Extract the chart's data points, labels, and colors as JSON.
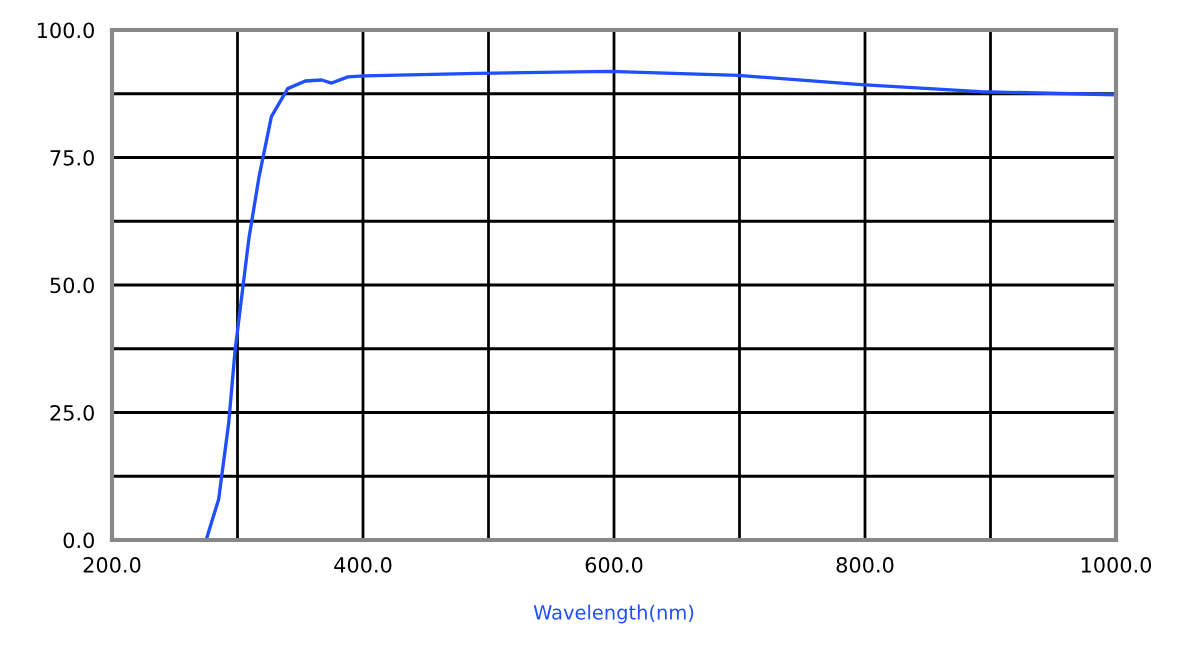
{
  "chart_data": {
    "type": "line",
    "xlabel": "Wavelength(nm)",
    "xlim": [
      200,
      1000
    ],
    "ylim": [
      0,
      100
    ],
    "xticks": [
      {
        "value": 200,
        "label": "200.0"
      },
      {
        "value": 300,
        "label": null
      },
      {
        "value": 400,
        "label": "400.0"
      },
      {
        "value": 500,
        "label": null
      },
      {
        "value": 600,
        "label": "600.0"
      },
      {
        "value": 700,
        "label": null
      },
      {
        "value": 800,
        "label": "800.0"
      },
      {
        "value": 900,
        "label": null
      },
      {
        "value": 1000,
        "label": "1000.0"
      }
    ],
    "yticks": [
      {
        "value": 0,
        "label": "0.0"
      },
      {
        "value": 12.5,
        "label": null
      },
      {
        "value": 25,
        "label": "25.0"
      },
      {
        "value": 37.5,
        "label": null
      },
      {
        "value": 50,
        "label": "50.0"
      },
      {
        "value": 62.5,
        "label": null
      },
      {
        "value": 75,
        "label": "75.0"
      },
      {
        "value": 87.5,
        "label": null
      },
      {
        "value": 100,
        "label": "100.0"
      }
    ],
    "grid": true,
    "series": [
      {
        "color": "#1f4fff",
        "x": [
          270,
          275,
          285,
          293,
          298,
          304,
          309,
          317,
          327,
          340,
          354,
          367,
          375,
          388,
          401,
          491,
          596,
          699,
          797,
          892,
          1000
        ],
        "values": [
          0,
          0,
          8,
          23,
          37,
          49,
          59,
          71,
          83,
          88.5,
          90,
          90.2,
          89.6,
          90.8,
          91,
          91.5,
          91.9,
          91.1,
          89.3,
          87.9,
          87.3
        ]
      }
    ]
  }
}
